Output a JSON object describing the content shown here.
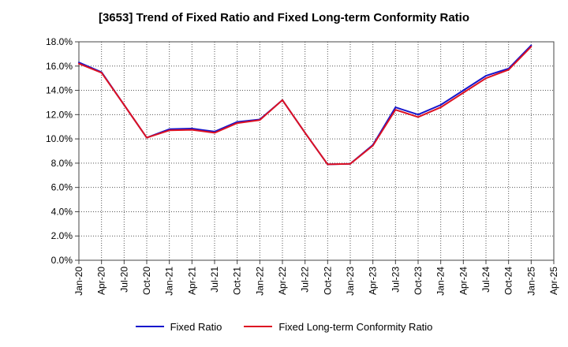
{
  "chart_data": {
    "type": "line",
    "title": "[3653]  Trend of Fixed Ratio and Fixed Long-term Conformity Ratio",
    "xlabel": "",
    "ylabel": "",
    "x": [
      "Jan-20",
      "Apr-20",
      "Jul-20",
      "Oct-20",
      "Jan-21",
      "Apr-21",
      "Jul-21",
      "Oct-21",
      "Jan-22",
      "Apr-22",
      "Jul-22",
      "Oct-22",
      "Jan-23",
      "Apr-23",
      "Jul-23",
      "Oct-23",
      "Jan-24",
      "Apr-24",
      "Jul-24",
      "Oct-24",
      "Jan-25"
    ],
    "x_ticks": [
      "Jan-20",
      "Apr-20",
      "Jul-20",
      "Oct-20",
      "Jan-21",
      "Apr-21",
      "Jul-21",
      "Oct-21",
      "Jan-22",
      "Apr-22",
      "Jul-22",
      "Oct-22",
      "Jan-23",
      "Apr-23",
      "Jul-23",
      "Oct-23",
      "Jan-24",
      "Apr-24",
      "Jul-24",
      "Oct-24",
      "Jan-25",
      "Apr-25"
    ],
    "y_ticks": [
      "0.0%",
      "2.0%",
      "4.0%",
      "6.0%",
      "8.0%",
      "10.0%",
      "12.0%",
      "14.0%",
      "16.0%",
      "18.0%"
    ],
    "ylim": [
      0,
      18
    ],
    "grid": true,
    "legend_position": "bottom",
    "series": [
      {
        "name": "Fixed Ratio",
        "color": "#1515cc",
        "values": [
          16.3,
          15.5,
          12.8,
          10.1,
          10.8,
          10.85,
          10.6,
          11.4,
          11.6,
          13.2,
          10.5,
          7.9,
          7.95,
          9.5,
          12.6,
          12.0,
          12.8,
          14.0,
          15.2,
          15.8,
          17.7
        ]
      },
      {
        "name": "Fixed Long-term Conformity Ratio",
        "color": "#dd1122",
        "values": [
          16.2,
          15.45,
          12.8,
          10.1,
          10.7,
          10.75,
          10.5,
          11.3,
          11.55,
          13.2,
          10.5,
          7.9,
          7.95,
          9.45,
          12.4,
          11.8,
          12.6,
          13.8,
          15.0,
          15.7,
          17.6
        ]
      }
    ]
  }
}
